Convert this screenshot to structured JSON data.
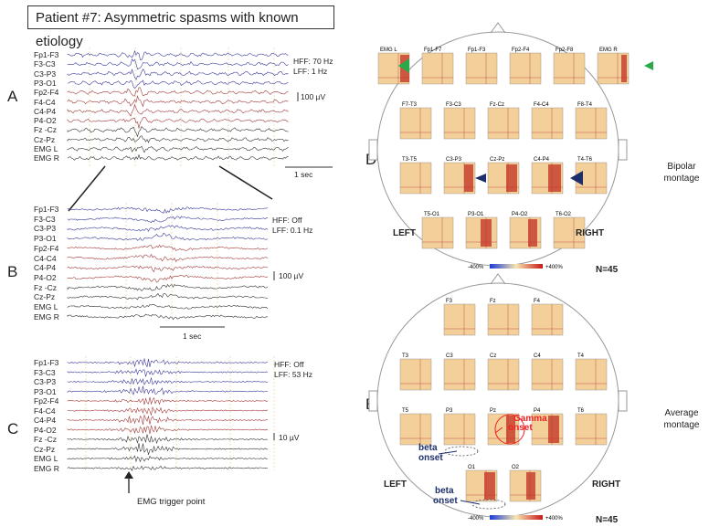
{
  "title": "Patient #7: Asymmetric spasms with known etiology",
  "panels": {
    "A": {
      "label": "A",
      "channels": [
        "Fp1-F3",
        "F3-C3",
        "C3-P3",
        "P3-O1",
        "Fp2-F4",
        "F4-C4",
        "C4-P4",
        "P4-O2",
        "Fz -Cz",
        "Cz-Pz",
        "EMG L",
        "EMG R"
      ],
      "hff": "HFF: 70 Hz",
      "lff": "LFF: 1 Hz",
      "scale": "100 µV",
      "time": "1 sec"
    },
    "B": {
      "label": "B",
      "channels": [
        "Fp1-F3",
        "F3-C3",
        "C3-P3",
        "P3-O1",
        "Fp2-F4",
        "C4-C4",
        "C4-P4",
        "P4-O2",
        "Fz -Cz",
        "Cz-Pz",
        "EMG L",
        "EMG R"
      ],
      "hff": "HFF: Off",
      "lff": "LFF: 0.1 Hz",
      "scale": "100 µV",
      "time": "1 sec"
    },
    "C": {
      "label": "C",
      "channels": [
        "Fp1-F3",
        "F3-C3",
        "C3-P3",
        "P3-O1",
        "Fp2-F4",
        "F4-C4",
        "C4-P4",
        "P4-O2",
        "Fz -Cz",
        "Cz-Pz",
        "EMG L",
        "EMG R"
      ],
      "hff": "HFF: Off",
      "lff": "LFF: 53 Hz",
      "scale": "10 µV",
      "trigger": "EMG trigger point"
    },
    "D": {
      "label": "D",
      "montage": "Bipolar montage",
      "n": "N=45",
      "left": "LEFT",
      "right": "RIGHT",
      "rows": [
        [
          "EMG L",
          "Fp1-F7",
          "Fp1-F3",
          "Fp2-F4",
          "Fp2-F8",
          "EMG R"
        ],
        [
          "F7-T3",
          "F3-C3",
          "Fz-Cz",
          "F4-C4",
          "F8-T4"
        ],
        [
          "T3-T5",
          "C3-P3",
          "Cz-Pz",
          "C4-P4",
          "T4-T6"
        ],
        [
          "T5-O1",
          "P3-O1",
          "P4-O2",
          "T6-O2"
        ]
      ],
      "colorbar_min": "-400%",
      "colorbar_max": "+400%"
    },
    "E": {
      "label": "E",
      "montage": "Average montage",
      "n": "N=45",
      "left": "LEFT",
      "right": "RIGHT",
      "rows": [
        [
          "F3",
          "Fz",
          "F4"
        ],
        [
          "T3",
          "C3",
          "Cz",
          "C4",
          "T4"
        ],
        [
          "T5",
          "P3",
          "Pz",
          "P4",
          "T6"
        ],
        [
          "O1",
          "O2"
        ]
      ],
      "gamma": "Gamma onset",
      "beta1": "beta onset",
      "beta2": "beta onset",
      "colorbar_min": "-400%",
      "colorbar_max": "+400%"
    }
  },
  "colors": {
    "blue": "#3a3a9a",
    "red": "#a33a3a",
    "black": "#333333"
  }
}
